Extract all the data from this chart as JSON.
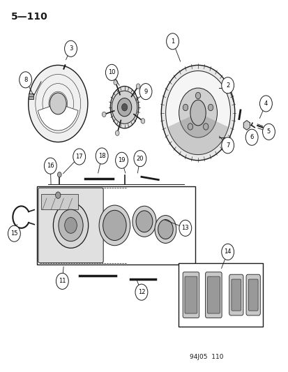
{
  "title": "5—110",
  "footer": "94J05  110",
  "bg_color": "#ffffff",
  "line_color": "#1a1a1a",
  "fig_width": 4.14,
  "fig_height": 5.33,
  "dpi": 100
}
